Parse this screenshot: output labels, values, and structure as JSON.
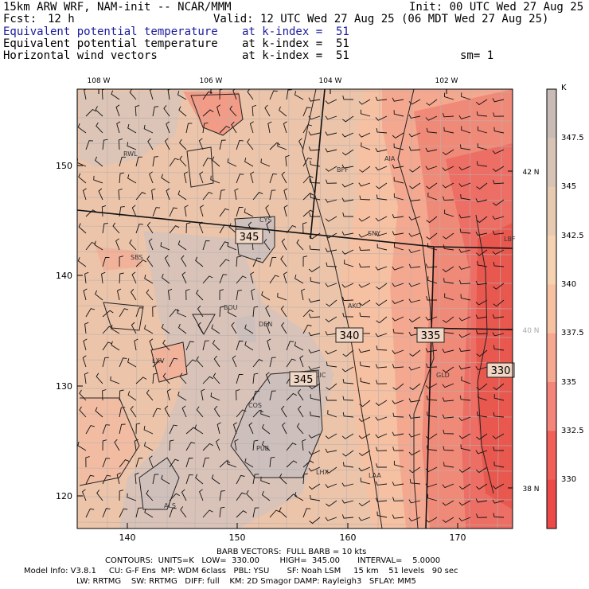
{
  "header": {
    "model_title": "15km ARW WRF, NAM-init -- NCAR/MMM",
    "init": "Init: 00 UTC Wed 27 Aug 25",
    "fcst_label": "Fcst:",
    "fcst_value": "12 h",
    "valid": "Valid: 12 UTC Wed 27 Aug 25 (06 MDT Wed 27 Aug 25)",
    "fields": [
      {
        "name": "Equivalent potential temperature",
        "level": "at k-index =  51",
        "color": "#1a1aa0"
      },
      {
        "name": "Equivalent potential temperature",
        "level": "at k-index =  51",
        "color": "#000000"
      },
      {
        "name": "Horizontal wind vectors",
        "level": "at k-index =  51",
        "color": "#000000"
      }
    ],
    "sm": "sm= 1"
  },
  "map": {
    "top_lon_labels": [
      "108 W",
      "106 W",
      "104 W",
      "102 W"
    ],
    "right_lat_labels": [
      "42 N",
      "40 N",
      "38 N"
    ],
    "left_grid_labels": [
      "150",
      "140",
      "130",
      "120"
    ],
    "bottom_grid_labels": [
      "140",
      "150",
      "160",
      "170"
    ],
    "cities": [
      "RWL",
      "BFF",
      "AIA",
      "CYS",
      "SNY",
      "SBS",
      "LBF",
      "BOU",
      "AKO",
      "DEN",
      "LXV",
      "LIC",
      "GLD",
      "COS",
      "PUB",
      "LHX",
      "LAA",
      "ALS"
    ],
    "contour_labels": [
      "345",
      "340",
      "335",
      "330",
      "345"
    ]
  },
  "colorbar": {
    "unit": "K",
    "labels": [
      "347.5",
      "345",
      "342.5",
      "340",
      "337.5",
      "335",
      "332.5",
      "330"
    ],
    "colors": [
      "#c8bcb6",
      "#d8c4b6",
      "#e6cab2",
      "#f4d2b2",
      "#f7c2a4",
      "#f6a890",
      "#f4857a",
      "#f05f58",
      "#ec4a48"
    ]
  },
  "footer": {
    "barb": "BARB VECTORS:  FULL BARB = 10 kts",
    "contours": "CONTOURS:  UNITS=K   LOW=  330.00        HIGH=  345.00       INTERVAL=    5.0000",
    "model_info": "Model Info: V3.8.1     CU: G-F Ens  MP: WDM 6class   PBL: YSU       SF: Noah LSM     15 km    51 levels   90 sec",
    "physics": "LW: RRTMG    SW: RRTMG   DIFF: full    KM: 2D Smagor DAMP: Rayleigh3   SFLAY: MM5"
  }
}
